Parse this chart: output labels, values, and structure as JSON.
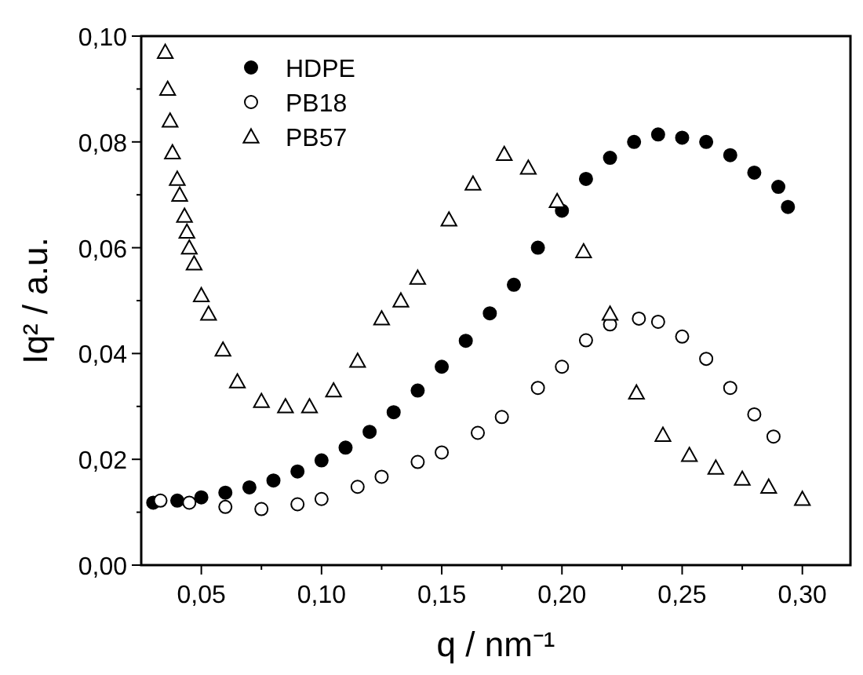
{
  "chart_data": {
    "type": "scatter",
    "xlabel": "q / nm⁻¹",
    "ylabel": "Iq² / a.u.",
    "xlim": [
      0.025,
      0.32
    ],
    "ylim": [
      0,
      0.1
    ],
    "xticks": [
      {
        "value": 0.05,
        "label": "0,05"
      },
      {
        "value": 0.075,
        "label": null
      },
      {
        "value": 0.1,
        "label": "0,10"
      },
      {
        "value": 0.125,
        "label": null
      },
      {
        "value": 0.15,
        "label": "0,15"
      },
      {
        "value": 0.175,
        "label": null
      },
      {
        "value": 0.2,
        "label": "0,20"
      },
      {
        "value": 0.225,
        "label": null
      },
      {
        "value": 0.25,
        "label": "0,25"
      },
      {
        "value": 0.275,
        "label": null
      },
      {
        "value": 0.3,
        "label": "0,30"
      }
    ],
    "yticks": [
      {
        "value": 0,
        "label": "0,00"
      },
      {
        "value": 0.01,
        "label": null
      },
      {
        "value": 0.02,
        "label": "0,02"
      },
      {
        "value": 0.03,
        "label": null
      },
      {
        "value": 0.04,
        "label": "0,04"
      },
      {
        "value": 0.05,
        "label": null
      },
      {
        "value": 0.06,
        "label": "0,06"
      },
      {
        "value": 0.07,
        "label": null
      },
      {
        "value": 0.08,
        "label": "0,08"
      },
      {
        "value": 0.09,
        "label": null
      },
      {
        "value": 0.1,
        "label": "0,10"
      }
    ],
    "legend": "top left",
    "grid": false,
    "series": [
      {
        "name": "HDPE",
        "color": "#000000",
        "marker": "circle",
        "x": [
          0.03,
          0.04,
          0.05,
          0.06,
          0.07,
          0.08,
          0.09,
          0.1,
          0.11,
          0.12,
          0.13,
          0.14,
          0.15,
          0.16,
          0.17,
          0.18,
          0.19,
          0.2,
          0.21,
          0.22,
          0.23,
          0.24,
          0.25,
          0.26,
          0.27,
          0.28,
          0.29,
          0.294
        ],
        "values": [
          0.0118,
          0.0122,
          0.0128,
          0.0137,
          0.0147,
          0.016,
          0.0177,
          0.0198,
          0.0222,
          0.0252,
          0.0289,
          0.033,
          0.0375,
          0.0424,
          0.0476,
          0.053,
          0.06,
          0.067,
          0.073,
          0.077,
          0.08,
          0.0814,
          0.0808,
          0.08,
          0.0775,
          0.0742,
          0.0715,
          0.0677
        ]
      },
      {
        "name": "PB18",
        "color": "#000000",
        "marker": "circle",
        "x": [
          0.033,
          0.045,
          0.06,
          0.075,
          0.09,
          0.1,
          0.115,
          0.125,
          0.14,
          0.15,
          0.165,
          0.175,
          0.19,
          0.2,
          0.21,
          0.22,
          0.232,
          0.24,
          0.25,
          0.26,
          0.27,
          0.28,
          0.288
        ],
        "values": [
          0.0122,
          0.0118,
          0.011,
          0.0106,
          0.0115,
          0.0125,
          0.0148,
          0.0167,
          0.0195,
          0.0213,
          0.025,
          0.028,
          0.0335,
          0.0375,
          0.0425,
          0.0455,
          0.0466,
          0.046,
          0.0432,
          0.039,
          0.0335,
          0.0285,
          0.0243
        ]
      },
      {
        "name": "PB57",
        "color": "#000000",
        "marker": "triangle",
        "x": [
          0.035,
          0.036,
          0.037,
          0.038,
          0.04,
          0.041,
          0.043,
          0.044,
          0.045,
          0.047,
          0.05,
          0.053,
          0.059,
          0.065,
          0.075,
          0.085,
          0.095,
          0.105,
          0.115,
          0.125,
          0.133,
          0.14,
          0.153,
          0.163,
          0.176,
          0.186,
          0.198,
          0.209,
          0.22,
          0.231,
          0.242,
          0.253,
          0.264,
          0.275,
          0.286,
          0.3
        ],
        "values": [
          0.097,
          0.09,
          0.084,
          0.078,
          0.073,
          0.07,
          0.066,
          0.063,
          0.06,
          0.057,
          0.051,
          0.0475,
          0.0407,
          0.0347,
          0.031,
          0.03,
          0.03,
          0.033,
          0.0386,
          0.0466,
          0.05,
          0.0543,
          0.0653,
          0.0721,
          0.0777,
          0.0751,
          0.0688,
          0.0593,
          0.0475,
          0.0326,
          0.0246,
          0.0208,
          0.0184,
          0.0163,
          0.0148,
          0.0125
        ]
      }
    ]
  }
}
